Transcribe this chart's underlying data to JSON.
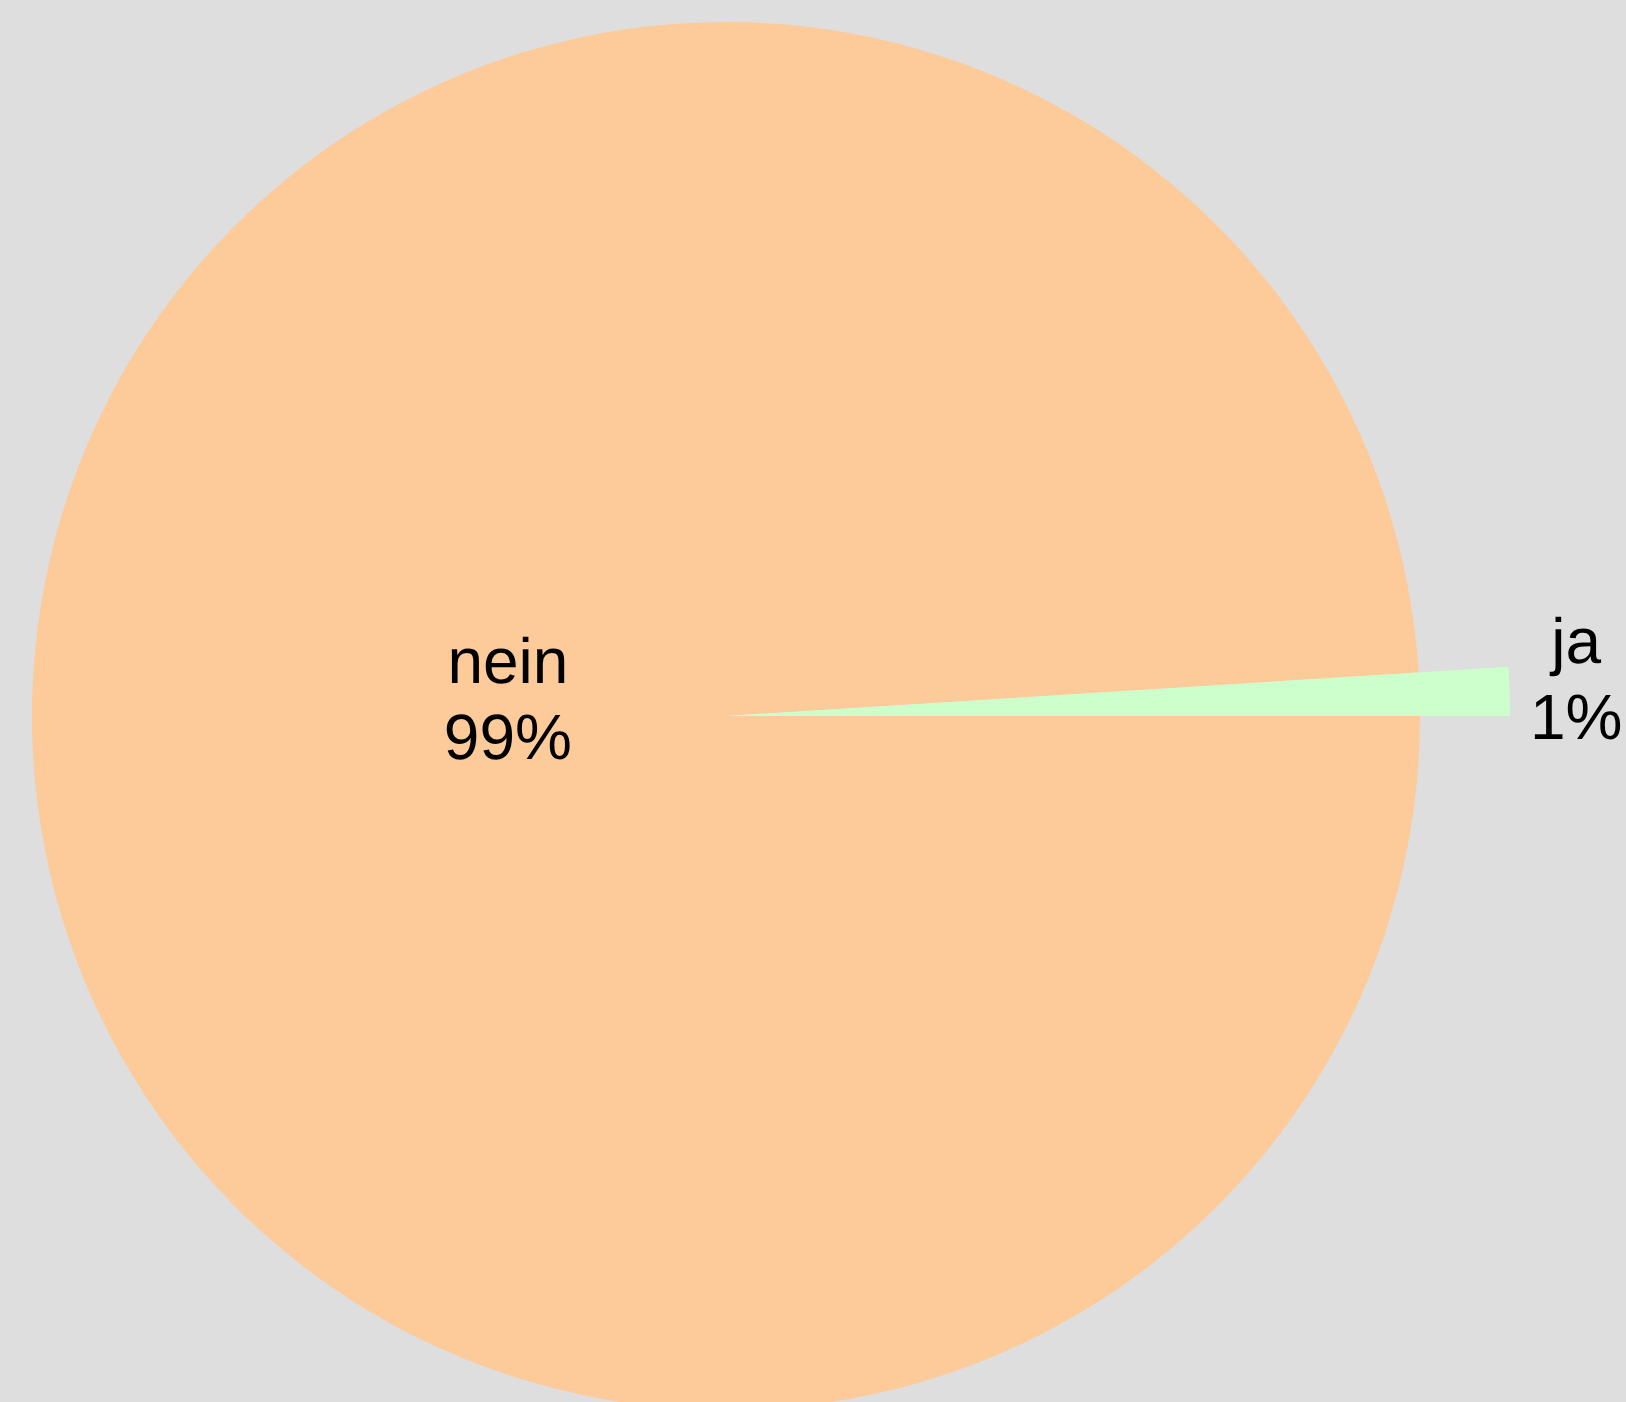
{
  "chart_data": {
    "type": "pie",
    "categories": [
      "nein",
      "ja"
    ],
    "values": [
      99,
      1
    ],
    "colors": [
      "#fdca99",
      "#ccffcc"
    ],
    "value_labels": [
      "99%",
      "1%"
    ]
  }
}
